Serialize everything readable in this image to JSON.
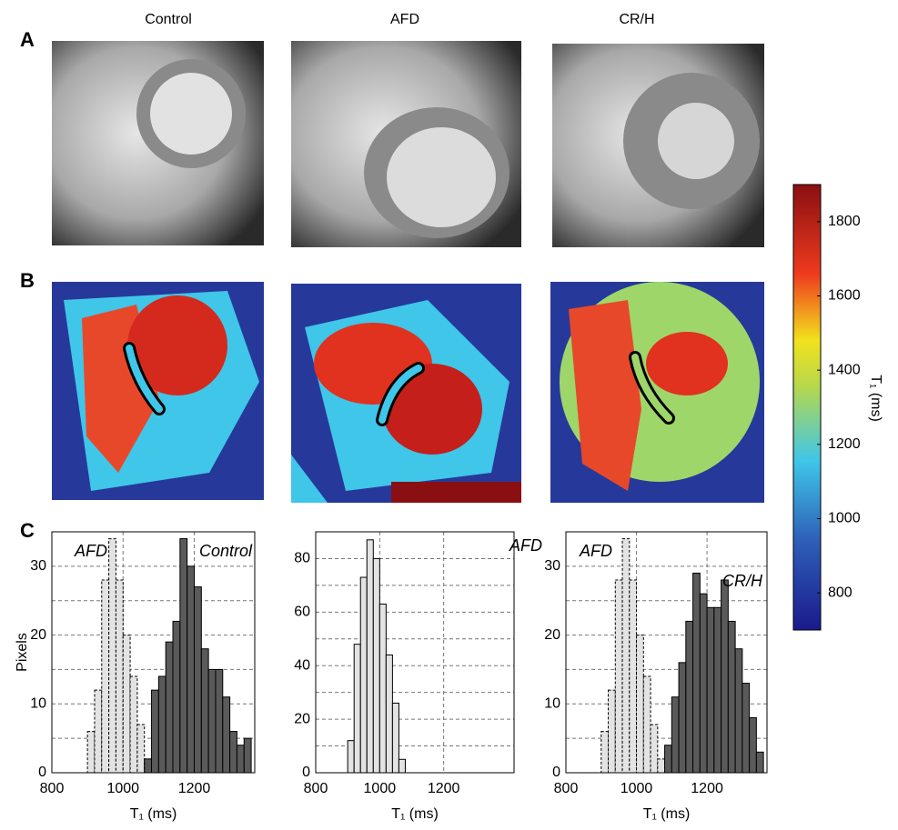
{
  "figure": {
    "column_titles": [
      "Control",
      "AFD",
      "CR/H"
    ],
    "panel_labels": [
      "A",
      "B",
      "C"
    ]
  },
  "chart_data": [
    {
      "type": "histogram",
      "xlabel": "T₁ (ms)",
      "ylabel": "Pixels",
      "xlim": [
        800,
        1370
      ],
      "ylim": [
        0,
        35
      ],
      "xticks": [
        800,
        1000,
        1200
      ],
      "yticks": [
        0,
        10,
        20,
        30
      ],
      "minor_yticks": [
        5,
        15,
        25
      ],
      "grid": true,
      "series": [
        {
          "name": "AFD",
          "color": "#e3e3e3",
          "dashed": true,
          "bins": [
            900,
            920,
            940,
            960,
            980,
            1000,
            1020,
            1040,
            1060,
            1080
          ],
          "values": [
            6,
            12,
            28,
            34,
            28,
            20,
            14,
            7,
            2
          ]
        },
        {
          "name": "Control",
          "color": "#5a5a5a",
          "dashed": false,
          "bins": [
            1060,
            1080,
            1100,
            1120,
            1140,
            1160,
            1180,
            1200,
            1220,
            1240,
            1260,
            1280,
            1300,
            1320,
            1340,
            1360
          ],
          "values": [
            2,
            12,
            14,
            19,
            22,
            34,
            30,
            27,
            18,
            15,
            15,
            11,
            6,
            4,
            5
          ]
        }
      ]
    },
    {
      "type": "histogram",
      "xlabel": "T₁ (ms)",
      "xlim": [
        800,
        1420
      ],
      "ylim": [
        0,
        90
      ],
      "xticks": [
        800,
        1000,
        1200
      ],
      "yticks": [
        0,
        20,
        40,
        60,
        80
      ],
      "minor_yticks": [
        10,
        30,
        50,
        70
      ],
      "grid": true,
      "series": [
        {
          "name": "AFD",
          "color": "#e3e3e3",
          "dashed": false,
          "bins": [
            900,
            920,
            940,
            960,
            980,
            1000,
            1020,
            1040,
            1060,
            1080
          ],
          "values": [
            12,
            48,
            73,
            87,
            80,
            63,
            44,
            26,
            5
          ]
        }
      ]
    },
    {
      "type": "histogram",
      "xlabel": "T₁ (ms)",
      "xlim": [
        800,
        1370
      ],
      "ylim": [
        0,
        35
      ],
      "xticks": [
        800,
        1000,
        1200
      ],
      "yticks": [
        0,
        10,
        20,
        30
      ],
      "minor_yticks": [
        5,
        15,
        25
      ],
      "grid": true,
      "series": [
        {
          "name": "AFD",
          "color": "#e3e3e3",
          "dashed": true,
          "bins": [
            900,
            920,
            940,
            960,
            980,
            1000,
            1020,
            1040,
            1060,
            1080
          ],
          "values": [
            6,
            12,
            28,
            34,
            28,
            20,
            14,
            7,
            2
          ]
        },
        {
          "name": "CR/H",
          "color": "#5a5a5a",
          "dashed": false,
          "bins": [
            1080,
            1100,
            1120,
            1140,
            1160,
            1180,
            1200,
            1220,
            1240,
            1260,
            1280,
            1300,
            1320,
            1340,
            1360
          ],
          "values": [
            4,
            11,
            16,
            22,
            29,
            26,
            24,
            24,
            28,
            22,
            18,
            13,
            8,
            3
          ]
        }
      ]
    },
    {
      "type": "colorbar",
      "label": "T₁ (ms)",
      "ylim": [
        700,
        1900
      ],
      "yticks": [
        800,
        1000,
        1200,
        1400,
        1600,
        1800
      ]
    }
  ]
}
